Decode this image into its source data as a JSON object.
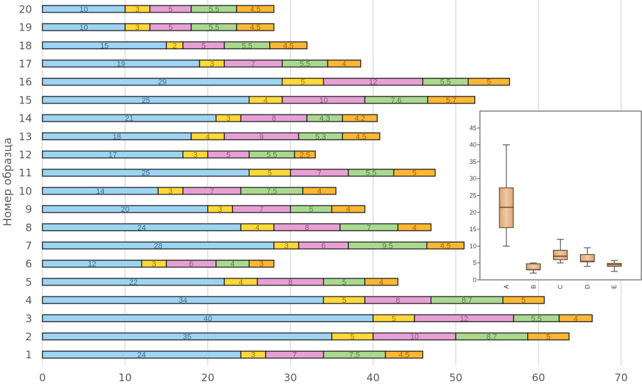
{
  "chart_data": [
    {
      "type": "bar",
      "orientation": "horizontal",
      "stacked": true,
      "title": "",
      "xlabel": "",
      "ylabel": "Номер образца",
      "xlim": [
        0,
        70
      ],
      "xticks": [
        0,
        10,
        20,
        30,
        40,
        50,
        60,
        70
      ],
      "grid": true,
      "legend": "none",
      "data_labels": true,
      "categories": [
        "1",
        "2",
        "3",
        "4",
        "5",
        "6",
        "7",
        "8",
        "9",
        "10",
        "11",
        "12",
        "13",
        "14",
        "15",
        "16",
        "17",
        "18",
        "19",
        "20"
      ],
      "series": [
        {
          "name": "A",
          "color": "#9DD3F3",
          "label_color": "#3B6A93",
          "values": [
            24,
            35,
            40,
            34,
            22,
            12,
            28,
            24,
            20,
            14,
            25,
            17,
            18,
            21,
            25,
            29,
            19,
            15,
            10,
            10
          ]
        },
        {
          "name": "B",
          "color": "#FFD83A",
          "label_color": "#957A10",
          "values": [
            3,
            5,
            5,
            5,
            4,
            3,
            3,
            4,
            3,
            3,
            5,
            3,
            4,
            3,
            4,
            5,
            3,
            2,
            3,
            3
          ]
        },
        {
          "name": "C",
          "color": "#E6A0D4",
          "label_color": "#8E5585",
          "values": [
            7,
            10,
            12,
            8,
            8,
            6,
            6,
            8,
            7,
            7,
            7,
            5,
            9,
            8,
            10,
            12,
            7,
            5,
            5,
            5
          ]
        },
        {
          "name": "D",
          "color": "#AAD88F",
          "label_color": "#55804A",
          "values": [
            7.5,
            8.7,
            5.5,
            8.7,
            5,
            4,
            9.5,
            7,
            5,
            7.5,
            5.5,
            5.5,
            5.3,
            4.3,
            7.6,
            5.5,
            5.5,
            5.5,
            5.5,
            5.5
          ]
        },
        {
          "name": "E",
          "color": "#FFB733",
          "label_color": "#99640E",
          "values": [
            4.5,
            5,
            4,
            5,
            4,
            3,
            4.5,
            4,
            4,
            4,
            5,
            2.5,
            4.5,
            4.2,
            5.7,
            5,
            4,
            4.5,
            4.5,
            4.5
          ]
        }
      ]
    },
    {
      "type": "box",
      "title": "",
      "xlabel": "",
      "ylabel": "",
      "categories": [
        "A",
        "B",
        "C",
        "D",
        "E"
      ],
      "ylim": [
        0,
        50
      ],
      "yticks": [
        0,
        5,
        10,
        15,
        20,
        25,
        30,
        35,
        40,
        45
      ],
      "grid": false,
      "legend": "none",
      "box_color": "#E3B68D",
      "stats": [
        {
          "min": 10,
          "q1": 15.5,
          "median": 21.5,
          "q3": 27.25,
          "max": 40
        },
        {
          "min": 2,
          "q1": 3,
          "median": 3,
          "q3": 4.75,
          "max": 5
        },
        {
          "min": 5,
          "q1": 6,
          "median": 7,
          "q3": 8.75,
          "max": 12
        },
        {
          "min": 4,
          "q1": 5.35,
          "median": 5.5,
          "q3": 7.5,
          "max": 9.5
        },
        {
          "min": 2.5,
          "q1": 4,
          "median": 4.5,
          "q3": 4.875,
          "max": 5.7
        }
      ]
    }
  ]
}
